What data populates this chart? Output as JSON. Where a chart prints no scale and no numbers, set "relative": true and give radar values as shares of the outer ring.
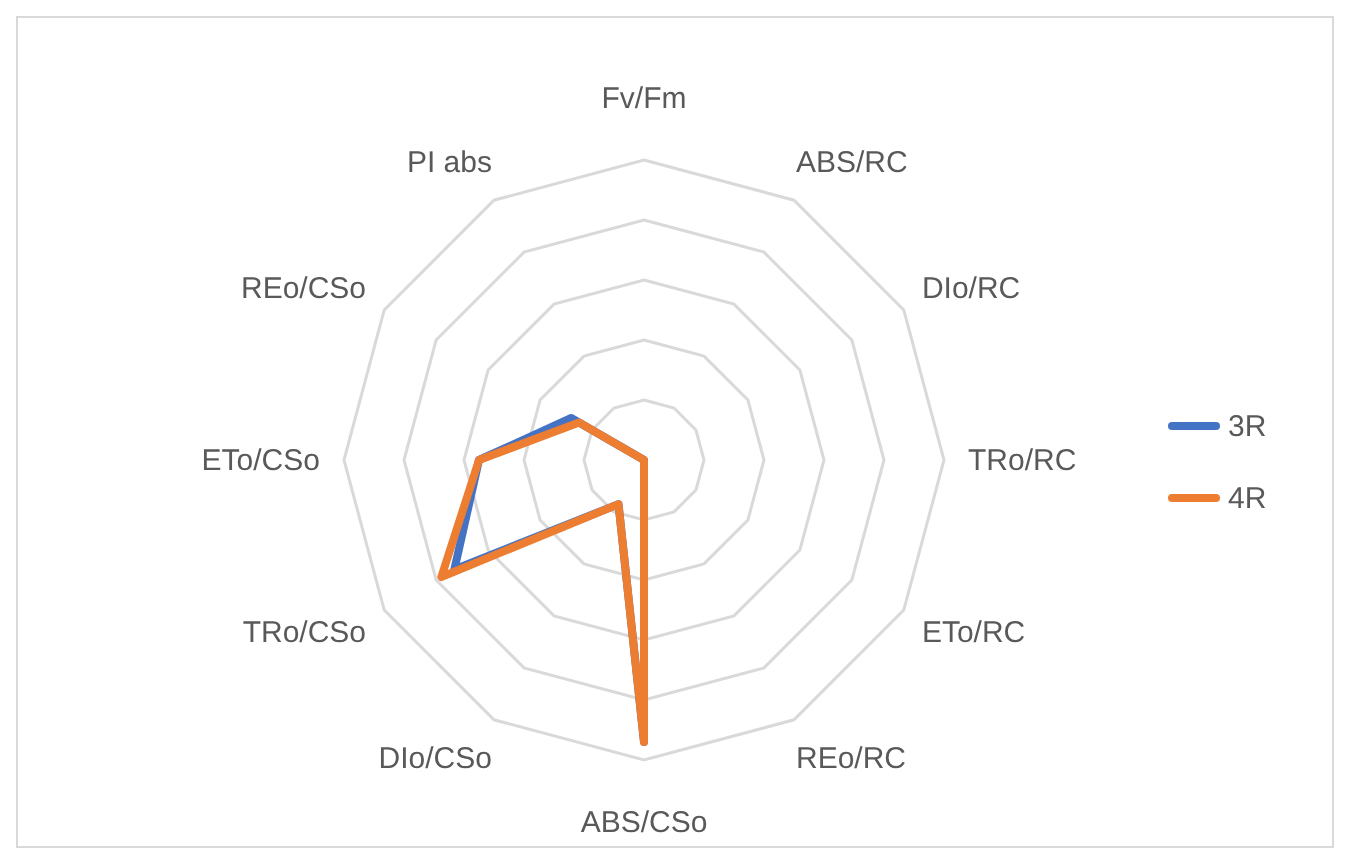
{
  "chart_data": {
    "type": "radar",
    "relative": true,
    "grid": true,
    "legend": "right",
    "categories": [
      "Fv/Fm",
      "ABS/RC",
      "DIo/RC",
      "TRo/RC",
      "ETo/RC",
      "REo/RC",
      "ABS/CSo",
      "DIo/CSo",
      "TRo/CSo",
      "ETo/CSo",
      "REo/CSo",
      "PI abs"
    ],
    "series": [
      {
        "name": "3R",
        "color": "#4472c4",
        "values": [
          0,
          0,
          0,
          0,
          0,
          0,
          0.94,
          0.17,
          0.73,
          0.55,
          0.28,
          0
        ]
      },
      {
        "name": "4R",
        "color": "#ed7d31",
        "values": [
          0,
          0,
          0,
          0,
          0,
          0,
          0.94,
          0.17,
          0.78,
          0.55,
          0.25,
          0
        ]
      }
    ]
  }
}
